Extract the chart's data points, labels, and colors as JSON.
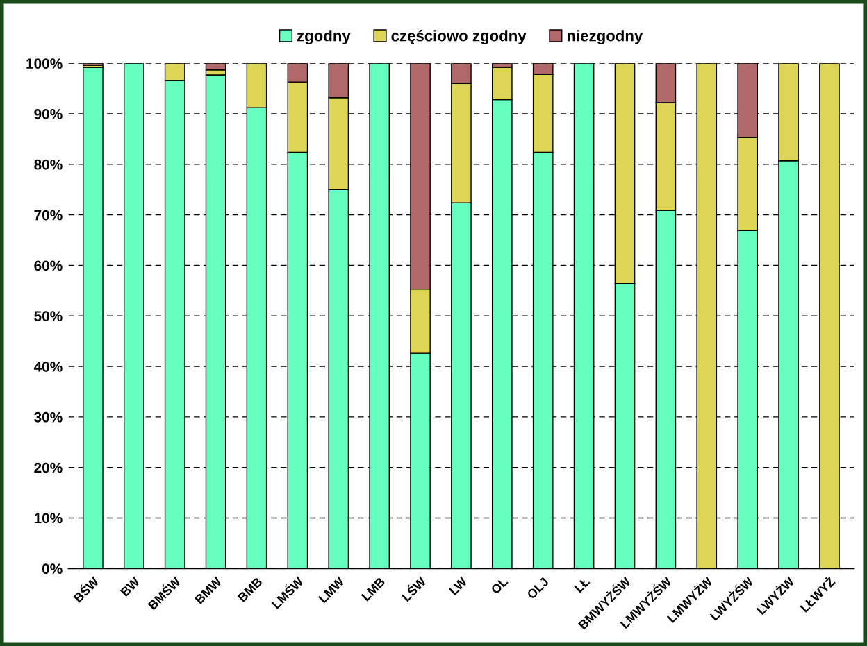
{
  "chart_data": {
    "type": "bar",
    "stacked": true,
    "categories": [
      "BŚW",
      "BW",
      "BMŚW",
      "BMW",
      "BMB",
      "LMŚW",
      "LMW",
      "LMB",
      "LŚW",
      "LW",
      "OL",
      "OLJ",
      "LŁ",
      "BMWYŻŚW",
      "LMWYŻŚW",
      "LMWYŻW",
      "LWYŻŚW",
      "LWYŻW",
      "LŁWYŻ"
    ],
    "series": [
      {
        "name": "zgodny",
        "color": "#66ffc0",
        "values": [
          99.2,
          100,
          96.6,
          97.7,
          91.2,
          82.4,
          75.0,
          100,
          42.6,
          72.4,
          92.8,
          82.4,
          100,
          56.4,
          70.9,
          null,
          66.9,
          80.7,
          null
        ]
      },
      {
        "name": "częściowo zgodny",
        "color": "#ddd555",
        "values": [
          0.4,
          null,
          3.4,
          1.0,
          8.8,
          13.9,
          18.2,
          null,
          12.7,
          23.6,
          6.4,
          15.4,
          null,
          43.6,
          21.3,
          100,
          18.4,
          19.3,
          100
        ]
      },
      {
        "name": "niezgodny",
        "color": "#b06868",
        "values": [
          0.4,
          null,
          null,
          1.3,
          null,
          3.7,
          6.8,
          null,
          44.7,
          4.0,
          0.8,
          2.2,
          null,
          null,
          7.8,
          null,
          14.7,
          null,
          null
        ]
      }
    ],
    "ylim": [
      0,
      100
    ],
    "yticks": [
      {
        "value": 0,
        "label": "0%"
      },
      {
        "value": 10,
        "label": "10%"
      },
      {
        "value": 20,
        "label": "20%"
      },
      {
        "value": 30,
        "label": "30%"
      },
      {
        "value": 40,
        "label": "40%"
      },
      {
        "value": 50,
        "label": "50%"
      },
      {
        "value": 60,
        "label": "60%"
      },
      {
        "value": 70,
        "label": "70%"
      },
      {
        "value": 80,
        "label": "80%"
      },
      {
        "value": 90,
        "label": "90%"
      },
      {
        "value": 100,
        "label": "100%"
      }
    ],
    "grid": "y",
    "legend": "top"
  }
}
